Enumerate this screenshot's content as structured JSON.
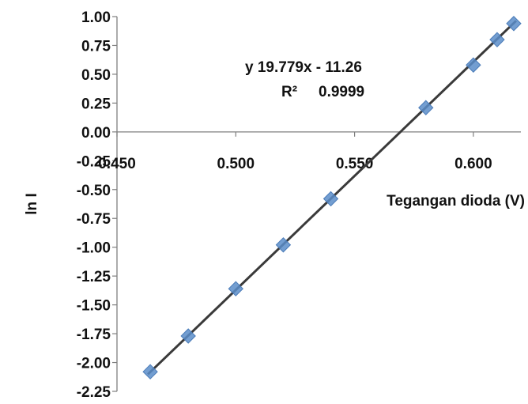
{
  "chart_data": {
    "type": "scatter",
    "xlabel": "Tegangan dioda (V)",
    "ylabel": "ln I",
    "xlim": [
      0.45,
      0.62
    ],
    "ylim": [
      -2.25,
      1.0
    ],
    "x_ticks": [
      "0.450",
      "0.500",
      "0.550",
      "0.600"
    ],
    "y_ticks": [
      "1.00",
      "0.75",
      "0.50",
      "0.25",
      "0.00",
      "-0.25",
      "-0.50",
      "-0.75",
      "-1.00",
      "-1.25",
      "-1.50",
      "-1.75",
      "-2.00",
      "-2.25"
    ],
    "grid": false,
    "legend": "none",
    "series": [
      {
        "x": [
          0.464,
          0.48,
          0.5,
          0.52,
          0.54,
          0.58,
          0.6,
          0.61,
          0.617
        ],
        "y": [
          -2.08,
          -1.77,
          -1.36,
          -0.98,
          -0.58,
          0.21,
          0.58,
          0.8,
          0.94
        ],
        "marker": "diamond",
        "color": "#5b8dc9"
      }
    ],
    "trendline": {
      "slope": 19.779,
      "intercept": -11.26,
      "color": "#3a3a3a",
      "x_range": [
        0.463,
        0.618
      ]
    },
    "annotations": {
      "equation": "y   19.779x - 11.26",
      "r2_label": "R²",
      "r2_value": "0.9999"
    }
  }
}
